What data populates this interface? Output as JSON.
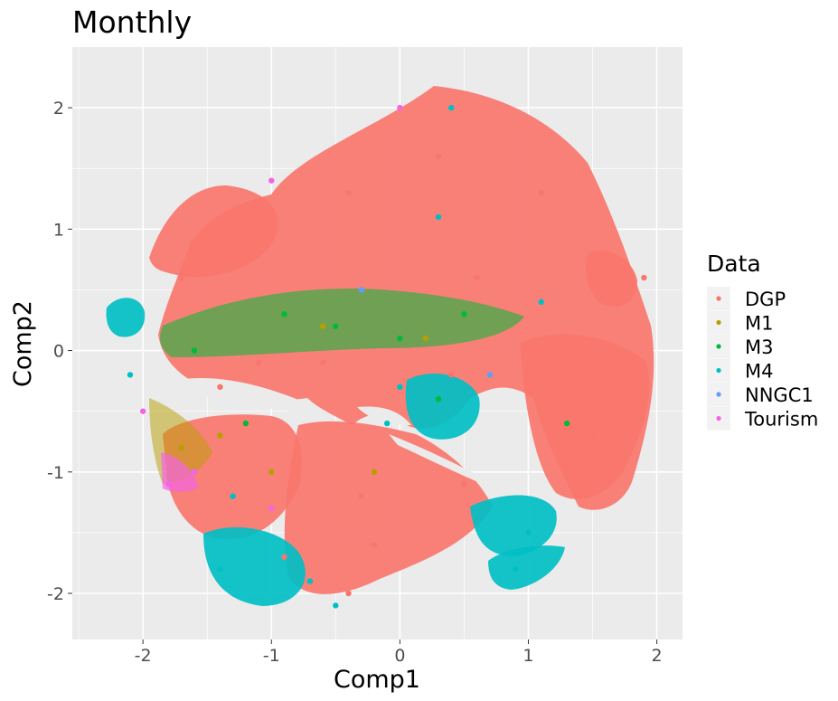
{
  "chart_data": {
    "type": "scatter",
    "title": "Monthly",
    "xlabel": "Comp1",
    "ylabel": "Comp2",
    "xlim": [
      -2.55,
      2.2
    ],
    "ylim": [
      -2.38,
      2.5
    ],
    "x_ticks": [
      -2,
      -1,
      0,
      1,
      2
    ],
    "y_ticks": [
      -2,
      -1,
      0,
      1,
      2
    ],
    "grid": true,
    "legend": {
      "title": "Data",
      "placement": "right",
      "entries": [
        {
          "name": "DGP",
          "color": "#F8766D"
        },
        {
          "name": "M1",
          "color": "#B79F00"
        },
        {
          "name": "M3",
          "color": "#00BA38"
        },
        {
          "name": "M4",
          "color": "#00BFC4"
        },
        {
          "name": "NNGC1",
          "color": "#619CFF"
        },
        {
          "name": "Tourism",
          "color": "#F564E3"
        }
      ]
    },
    "series": [
      {
        "name": "DGP",
        "color": "#F8766D",
        "x": [
          -0.4,
          0.3,
          1.1,
          -1.2,
          0.6,
          0.4,
          1.5,
          -0.6,
          -1.1,
          1.5,
          -0.3,
          -0.2,
          1.7,
          1.9,
          -1.7,
          0.5,
          -0.4,
          -0.9,
          -1.4
        ],
        "y": [
          1.3,
          1.6,
          1.3,
          0.9,
          0.6,
          -0.2,
          0.0,
          -0.1,
          -0.1,
          -0.7,
          -1.2,
          -1.6,
          0.6,
          0.6,
          0.6,
          -1.1,
          -2.0,
          -1.7,
          -0.3
        ]
      },
      {
        "name": "M1",
        "color": "#B79F00",
        "x": [
          -1.7,
          -1.4,
          -0.6,
          0.2,
          -1.0,
          -0.2
        ],
        "y": [
          -0.8,
          -0.7,
          0.2,
          0.1,
          -1.0,
          -1.0
        ]
      },
      {
        "name": "M3",
        "color": "#00BA38",
        "x": [
          -0.9,
          -0.5,
          0.0,
          0.5,
          -1.6,
          -1.2,
          0.3,
          1.3
        ],
        "y": [
          0.3,
          0.2,
          0.1,
          0.3,
          0.0,
          -0.6,
          -0.4,
          -0.6
        ]
      },
      {
        "name": "M4",
        "color": "#00BFC4",
        "x": [
          -1.4,
          -0.7,
          -0.5,
          -1.3,
          0.0,
          1.0,
          0.9,
          -2.1,
          0.4,
          1.1,
          0.3,
          -0.1
        ],
        "y": [
          -1.8,
          -1.9,
          -2.1,
          -1.2,
          -0.3,
          -1.5,
          -1.8,
          -0.2,
          2.0,
          0.4,
          1.1,
          -0.6
        ]
      },
      {
        "name": "NNGC1",
        "color": "#619CFF",
        "x": [
          -1.6,
          -0.3,
          0.7
        ],
        "y": [
          -1.0,
          0.5,
          -0.2
        ]
      },
      {
        "name": "Tourism",
        "color": "#F564E3",
        "x": [
          -1.8,
          -1.6,
          -1.0,
          0.0,
          -1.0,
          -2.0
        ],
        "y": [
          -1.1,
          -1.0,
          -1.3,
          2.0,
          1.4,
          -0.5
        ]
      }
    ]
  }
}
